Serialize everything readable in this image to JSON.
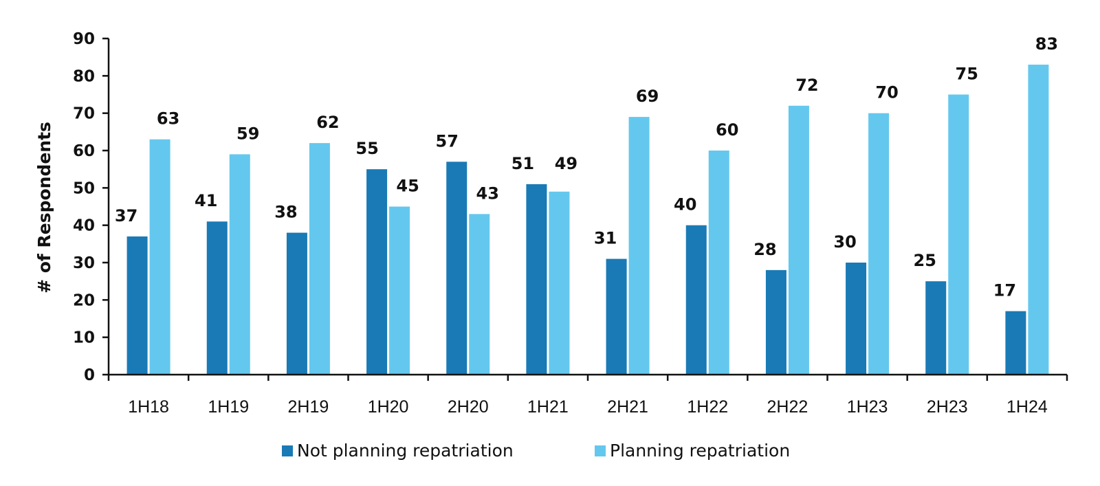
{
  "chart_data": {
    "type": "bar",
    "ylabel": "# of Respondents",
    "xlabel": "",
    "ylim": [
      0,
      90
    ],
    "yticks": [
      0,
      10,
      20,
      30,
      40,
      50,
      60,
      70,
      80,
      90
    ],
    "categories": [
      "1H18",
      "1H19",
      "2H19",
      "1H20",
      "2H20",
      "1H21",
      "2H21",
      "1H22",
      "2H22",
      "1H23",
      "2H23",
      "1H24"
    ],
    "series": [
      {
        "name": "Not planning repatriation",
        "color": "#1a7ab5",
        "values": [
          37,
          41,
          38,
          55,
          57,
          51,
          31,
          40,
          28,
          30,
          25,
          17
        ]
      },
      {
        "name": "Planning repatriation",
        "color": "#64c8ee",
        "values": [
          63,
          59,
          62,
          45,
          43,
          49,
          69,
          60,
          72,
          70,
          75,
          83
        ]
      }
    ],
    "grid": false,
    "legend_position": "bottom"
  }
}
